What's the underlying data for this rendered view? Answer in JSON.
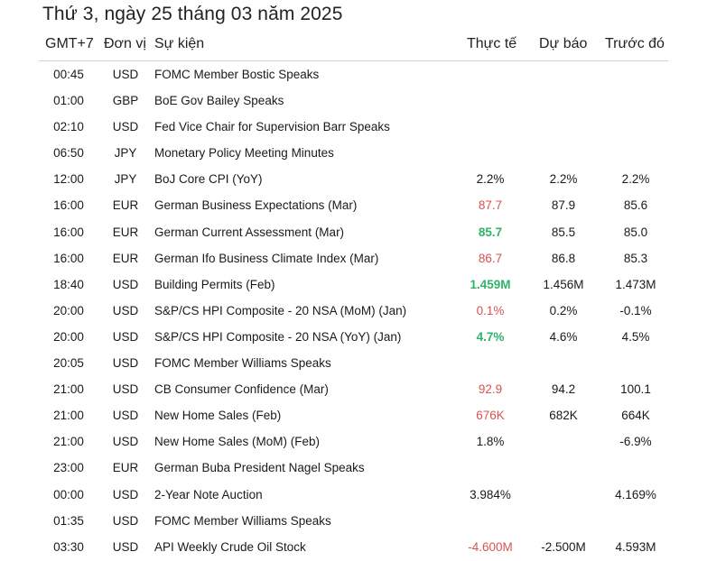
{
  "title": "Thứ 3, ngày 25 tháng 03 năm 2025",
  "headers": {
    "time": "GMT+7",
    "currency": "Đơn vị",
    "event": "Sự kiện",
    "actual": "Thực tế",
    "forecast": "Dự báo",
    "previous": "Trước đó"
  },
  "colors": {
    "negative": "#d9534f",
    "positive": "#2fb36a"
  },
  "rows": [
    {
      "time": "00:45",
      "currency": "USD",
      "event": "FOMC Member Bostic Speaks",
      "actual": "",
      "actual_tone": "neu",
      "forecast": "",
      "previous": ""
    },
    {
      "time": "01:00",
      "currency": "GBP",
      "event": "BoE Gov Bailey Speaks",
      "actual": "",
      "actual_tone": "neu",
      "forecast": "",
      "previous": ""
    },
    {
      "time": "02:10",
      "currency": "USD",
      "event": "Fed Vice Chair for Supervision Barr Speaks",
      "actual": "",
      "actual_tone": "neu",
      "forecast": "",
      "previous": ""
    },
    {
      "time": "06:50",
      "currency": "JPY",
      "event": "Monetary Policy Meeting Minutes",
      "actual": "",
      "actual_tone": "neu",
      "forecast": "",
      "previous": ""
    },
    {
      "time": "12:00",
      "currency": "JPY",
      "event": "BoJ Core CPI (YoY)",
      "actual": "2.2%",
      "actual_tone": "neu",
      "forecast": "2.2%",
      "previous": "2.2%"
    },
    {
      "time": "16:00",
      "currency": "EUR",
      "event": "German Business Expectations (Mar)",
      "actual": "87.7",
      "actual_tone": "neg",
      "forecast": "87.9",
      "previous": "85.6"
    },
    {
      "time": "16:00",
      "currency": "EUR",
      "event": "German Current Assessment (Mar)",
      "actual": "85.7",
      "actual_tone": "pos",
      "forecast": "85.5",
      "previous": "85.0"
    },
    {
      "time": "16:00",
      "currency": "EUR",
      "event": "German Ifo Business Climate Index (Mar)",
      "actual": "86.7",
      "actual_tone": "neg",
      "forecast": "86.8",
      "previous": "85.3"
    },
    {
      "time": "18:40",
      "currency": "USD",
      "event": "Building Permits (Feb)",
      "actual": "1.459M",
      "actual_tone": "pos",
      "forecast": "1.456M",
      "previous": "1.473M"
    },
    {
      "time": "20:00",
      "currency": "USD",
      "event": "S&P/CS HPI Composite - 20 NSA (MoM) (Jan)",
      "actual": "0.1%",
      "actual_tone": "neg",
      "forecast": "0.2%",
      "previous": "-0.1%"
    },
    {
      "time": "20:00",
      "currency": "USD",
      "event": "S&P/CS HPI Composite - 20 NSA (YoY) (Jan)",
      "actual": "4.7%",
      "actual_tone": "pos",
      "forecast": "4.6%",
      "previous": "4.5%"
    },
    {
      "time": "20:05",
      "currency": "USD",
      "event": "FOMC Member Williams Speaks",
      "actual": "",
      "actual_tone": "neu",
      "forecast": "",
      "previous": ""
    },
    {
      "time": "21:00",
      "currency": "USD",
      "event": "CB Consumer Confidence (Mar)",
      "actual": "92.9",
      "actual_tone": "neg",
      "forecast": "94.2",
      "previous": "100.1"
    },
    {
      "time": "21:00",
      "currency": "USD",
      "event": "New Home Sales (Feb)",
      "actual": "676K",
      "actual_tone": "neg",
      "forecast": "682K",
      "previous": "664K"
    },
    {
      "time": "21:00",
      "currency": "USD",
      "event": "New Home Sales (MoM) (Feb)",
      "actual": "1.8%",
      "actual_tone": "neu",
      "forecast": "",
      "previous": "-6.9%"
    },
    {
      "time": "23:00",
      "currency": "EUR",
      "event": "German Buba President Nagel Speaks",
      "actual": "",
      "actual_tone": "neu",
      "forecast": "",
      "previous": ""
    },
    {
      "time": "00:00",
      "currency": "USD",
      "event": "2-Year Note Auction",
      "actual": "3.984%",
      "actual_tone": "neu",
      "forecast": "",
      "previous": "4.169%"
    },
    {
      "time": "01:35",
      "currency": "USD",
      "event": "FOMC Member Williams Speaks",
      "actual": "",
      "actual_tone": "neu",
      "forecast": "",
      "previous": ""
    },
    {
      "time": "03:30",
      "currency": "USD",
      "event": "API Weekly Crude Oil Stock",
      "actual": "-4.600M",
      "actual_tone": "neg",
      "forecast": "-2.500M",
      "previous": "4.593M"
    }
  ]
}
